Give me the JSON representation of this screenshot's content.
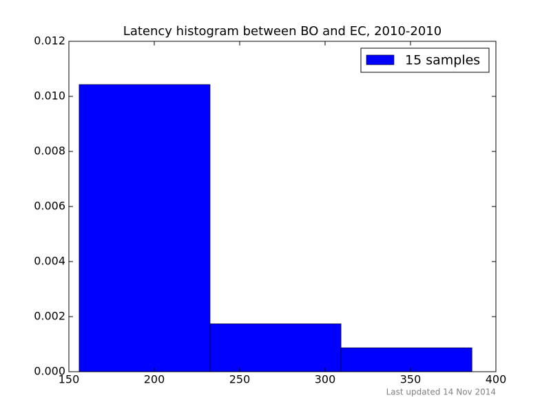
{
  "chart_data": {
    "type": "histogram",
    "title": "Latency histogram between BO and EC, 2010-2010",
    "bins": [
      156.0,
      232.67,
      309.33,
      386.0
    ],
    "series": [
      {
        "name": "15 samples",
        "color": "#0000ff",
        "values": [
          0.01043,
          0.00174,
          0.00087
        ]
      }
    ],
    "xlim": [
      150,
      400
    ],
    "xticks": [
      150,
      200,
      250,
      300,
      350,
      400
    ],
    "ylim": [
      0,
      0.012
    ],
    "yticks": [
      {
        "value": 0,
        "label": "0.000"
      },
      {
        "value": 0.002,
        "label": "0.002"
      },
      {
        "value": 0.004,
        "label": "0.004"
      },
      {
        "value": 0.006,
        "label": "0.006"
      },
      {
        "value": 0.008,
        "label": "0.008"
      },
      {
        "value": 0.01,
        "label": "0.010"
      },
      {
        "value": 0.012,
        "label": "0.012"
      }
    ],
    "legend": "upper right",
    "grid": false
  },
  "footer": "Last updated 14 Nov 2014"
}
